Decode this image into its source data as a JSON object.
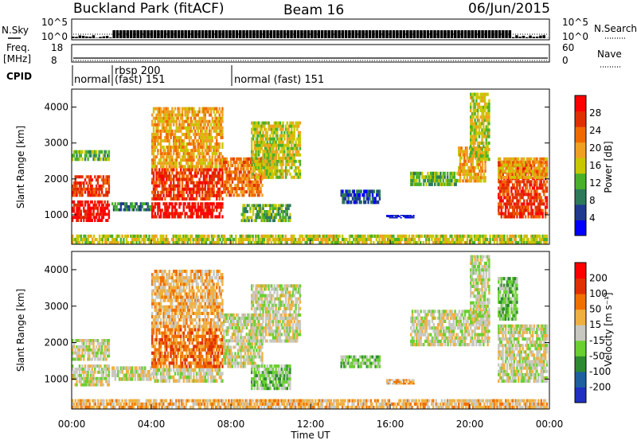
{
  "header": {
    "station": "Buckland Park (fitACF)",
    "beam": "Beam 16",
    "date": "06/Jun/2015"
  },
  "top_panels": {
    "nsky_label": "N.Sky",
    "nsky_ticks": [
      "10^5",
      "10^0"
    ],
    "nsearch_label": "N.Search",
    "nsearch_ticks": [
      "10^5",
      "10^0"
    ],
    "freq_label_1": "Freq.",
    "freq_label_2": "[MHz]",
    "freq_ticks": [
      "18",
      "8"
    ],
    "nave_label": "Nave",
    "nave_ticks": [
      "60",
      "0"
    ],
    "cpid_label": "CPID",
    "cpid_segments": [
      {
        "line1": "normal",
        "line2": ""
      },
      {
        "line1": "rbsp 200",
        "line2": "(fast) 151"
      },
      {
        "line1": "normal (fast)  151",
        "line2": ""
      }
    ]
  },
  "colors": {
    "power_scale": [
      "#0000ff",
      "#1f3a8f",
      "#2d7a5a",
      "#49b02a",
      "#c8c800",
      "#f0a020",
      "#f06a00",
      "#e03000",
      "#ff0000"
    ],
    "velocity_scale": [
      "#2030c0",
      "#1f60a0",
      "#2d8a30",
      "#6ad030",
      "#c8c8c0",
      "#f0b040",
      "#f07000",
      "#e03000",
      "#ff0000"
    ]
  },
  "chart_data": [
    {
      "type": "heatmap",
      "panel": "power",
      "ylabel": "Slant Range [km]",
      "ylim": [
        180,
        4500
      ],
      "xlim_hours": [
        0,
        24
      ],
      "y_ticks": [
        "1000",
        "2000",
        "3000",
        "4000"
      ],
      "colorbar_label": "Power [dB]",
      "colorbar_ticks": [
        "4",
        "8",
        "12",
        "16",
        "20",
        "24",
        "28"
      ],
      "bands": [
        {
          "t0": 0.0,
          "t1": 1.9,
          "r0": 800,
          "r1": 1400,
          "c": 8
        },
        {
          "t0": 0.0,
          "t1": 1.9,
          "r0": 1500,
          "r1": 2100,
          "c": 7
        },
        {
          "t0": 0.0,
          "t1": 1.9,
          "r0": 2500,
          "r1": 2800,
          "c": 3
        },
        {
          "t0": 2.0,
          "t1": 4.0,
          "r0": 1100,
          "r1": 1350,
          "c": 2
        },
        {
          "t0": 4.0,
          "t1": 7.6,
          "r0": 900,
          "r1": 1350,
          "c": 8
        },
        {
          "t0": 4.0,
          "t1": 7.6,
          "r0": 1400,
          "r1": 2300,
          "c": 7
        },
        {
          "t0": 4.0,
          "t1": 7.6,
          "r0": 2300,
          "r1": 4000,
          "c": 5
        },
        {
          "t0": 7.6,
          "t1": 9.6,
          "r0": 1500,
          "r1": 2600,
          "c": 6
        },
        {
          "t0": 9.6,
          "t1": 10.3,
          "r0": 2000,
          "r1": 3000,
          "c": 4
        },
        {
          "t0": 8.5,
          "t1": 11.0,
          "r0": 800,
          "r1": 1300,
          "c": 3
        },
        {
          "t0": 9.0,
          "t1": 11.5,
          "r0": 2000,
          "r1": 3600,
          "c": 4
        },
        {
          "t0": 13.5,
          "t1": 15.5,
          "r0": 1300,
          "r1": 1700,
          "c": 1
        },
        {
          "t0": 15.8,
          "t1": 17.2,
          "r0": 900,
          "r1": 1000,
          "c": 0
        },
        {
          "t0": 17.0,
          "t1": 19.4,
          "r0": 1800,
          "r1": 2200,
          "c": 3
        },
        {
          "t0": 19.4,
          "t1": 20.8,
          "r0": 1900,
          "r1": 2900,
          "c": 5
        },
        {
          "t0": 20.0,
          "t1": 21.0,
          "r0": 2500,
          "r1": 4400,
          "c": 4
        },
        {
          "t0": 21.4,
          "t1": 23.9,
          "r0": 900,
          "r1": 2500,
          "c": 7
        },
        {
          "t0": 21.4,
          "t1": 23.9,
          "r0": 2000,
          "r1": 2600,
          "c": 5
        },
        {
          "t0": 0.0,
          "t1": 23.9,
          "r0": 180,
          "r1": 450,
          "c": 4
        }
      ]
    },
    {
      "type": "heatmap",
      "panel": "velocity",
      "ylabel": "Slant Range [km]",
      "ylim": [
        180,
        4500
      ],
      "xlim_hours": [
        0,
        24
      ],
      "y_ticks": [
        "1000",
        "2000",
        "3000",
        "4000"
      ],
      "x_ticks": [
        "00:00",
        "04:00",
        "08:00",
        "12:00",
        "16:00",
        "20:00",
        "00:00"
      ],
      "xlabel": "Time UT",
      "colorbar_label": "Velocity [m s⁻¹]",
      "colorbar_ticks": [
        "-200",
        "-100",
        "-50",
        "-15",
        "15",
        "50",
        "100",
        "200"
      ],
      "bands": [
        {
          "t0": 0.0,
          "t1": 1.9,
          "r0": 800,
          "r1": 1400,
          "c": 4
        },
        {
          "t0": 0.0,
          "t1": 1.9,
          "r0": 1500,
          "r1": 2100,
          "c": 4
        },
        {
          "t0": 2.0,
          "t1": 4.0,
          "r0": 950,
          "r1": 1350,
          "c": 4
        },
        {
          "t0": 4.0,
          "t1": 7.6,
          "r0": 900,
          "r1": 1300,
          "c": 4
        },
        {
          "t0": 4.0,
          "t1": 7.6,
          "r0": 1300,
          "r1": 2400,
          "c": 6
        },
        {
          "t0": 4.0,
          "t1": 7.6,
          "r0": 2400,
          "r1": 4000,
          "c": 5
        },
        {
          "t0": 7.6,
          "t1": 9.6,
          "r0": 1300,
          "r1": 2800,
          "c": 4
        },
        {
          "t0": 9.0,
          "t1": 11.0,
          "r0": 700,
          "r1": 1400,
          "c": 3
        },
        {
          "t0": 9.0,
          "t1": 11.5,
          "r0": 2000,
          "r1": 3600,
          "c": 4
        },
        {
          "t0": 13.5,
          "t1": 15.5,
          "r0": 1300,
          "r1": 1650,
          "c": 3
        },
        {
          "t0": 15.8,
          "t1": 17.2,
          "r0": 850,
          "r1": 1000,
          "c": 5
        },
        {
          "t0": 17.0,
          "t1": 21.0,
          "r0": 1900,
          "r1": 2900,
          "c": 4
        },
        {
          "t0": 20.0,
          "t1": 21.0,
          "r0": 2500,
          "r1": 4400,
          "c": 4
        },
        {
          "t0": 21.4,
          "t1": 23.9,
          "r0": 900,
          "r1": 2500,
          "c": 4
        },
        {
          "t0": 21.4,
          "t1": 22.4,
          "r0": 2600,
          "r1": 3800,
          "c": 3
        },
        {
          "t0": 0.0,
          "t1": 23.9,
          "r0": 180,
          "r1": 450,
          "c": 5
        }
      ]
    }
  ]
}
